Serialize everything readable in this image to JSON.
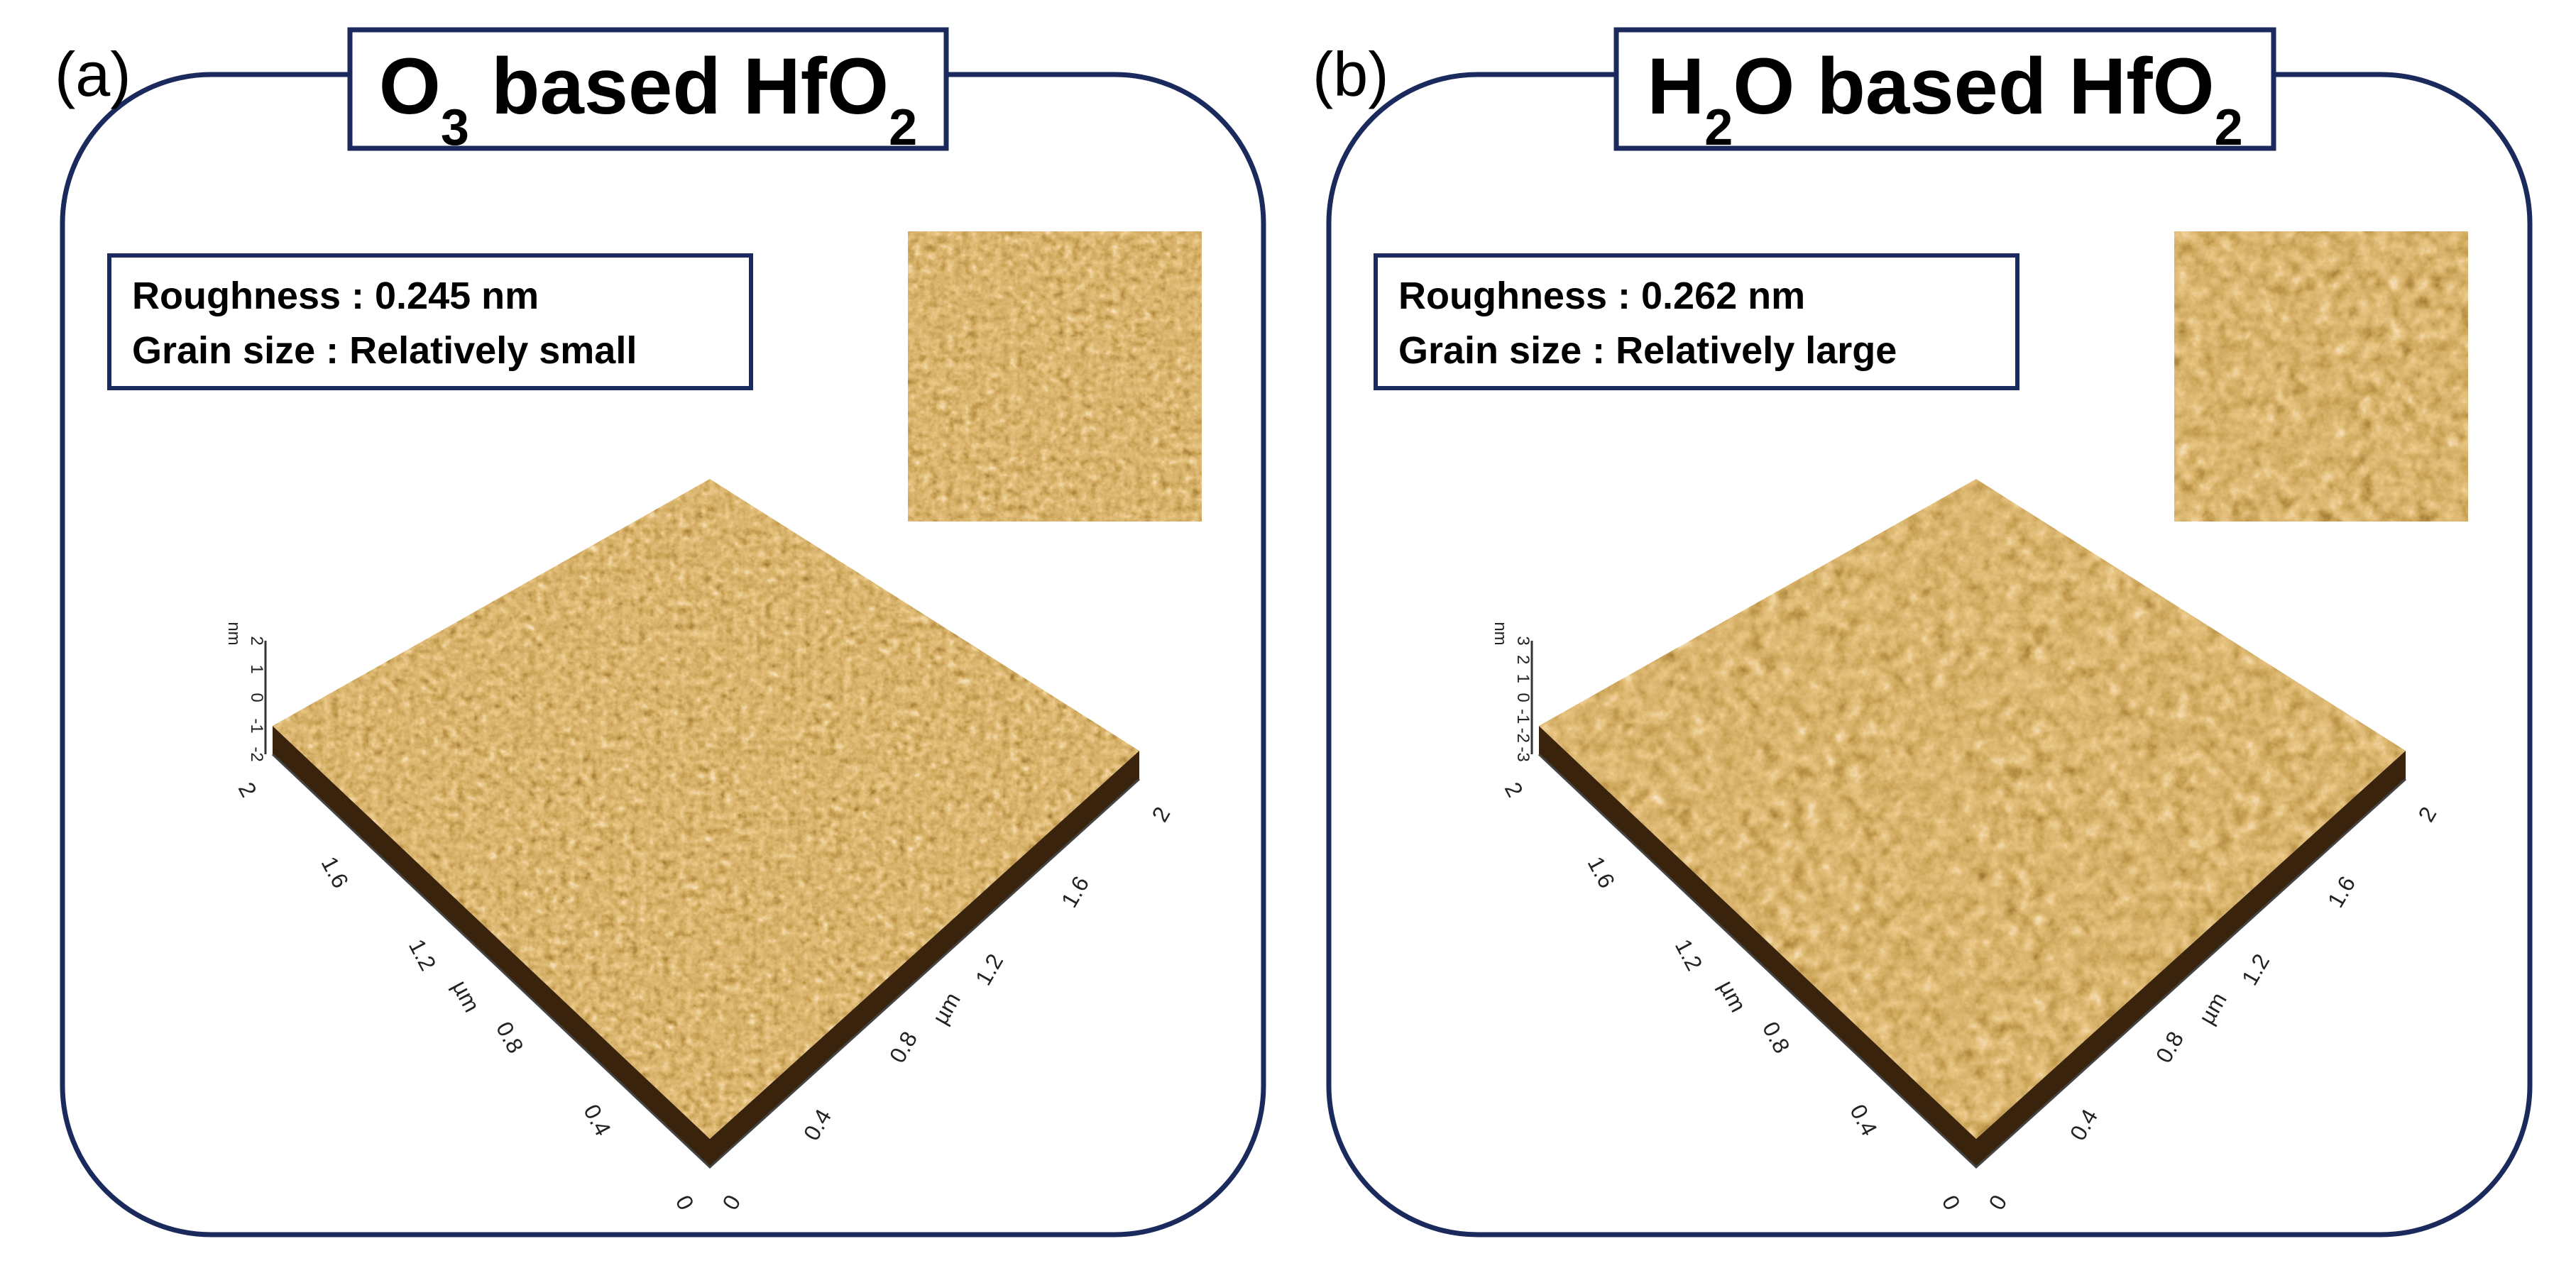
{
  "panels": [
    {
      "label": "(a)",
      "title": [
        "O",
        "3",
        " based HfO",
        "2"
      ],
      "info": [
        "Roughness : 0.245 nm",
        "Grain size : Relatively small"
      ],
      "z_unit": "nm",
      "z_ticks": [
        "2",
        "1",
        "0",
        "-1",
        "-2"
      ],
      "x_unit": "µm",
      "x_ticks": [
        "0",
        "0.4",
        "0.8",
        "1.2",
        "1.6",
        "2"
      ],
      "y_unit": "µm",
      "y_ticks": [
        "0",
        "0.4",
        "0.8",
        "1.2",
        "1.6",
        "2"
      ]
    },
    {
      "label": "(b)",
      "title": [
        "H",
        "2",
        "O based HfO",
        "2"
      ],
      "info": [
        "Roughness : 0.262 nm",
        "Grain size : Relatively large"
      ],
      "z_unit": "nm",
      "z_ticks": [
        "3",
        "2",
        "1",
        "0",
        "-1",
        "-2",
        "-3"
      ],
      "x_unit": "µm",
      "x_ticks": [
        "0",
        "0.4",
        "0.8",
        "1.2",
        "1.6",
        "2"
      ],
      "y_unit": "µm",
      "y_ticks": [
        "0",
        "0.4",
        "0.8",
        "1.2",
        "1.6",
        "2"
      ]
    }
  ]
}
